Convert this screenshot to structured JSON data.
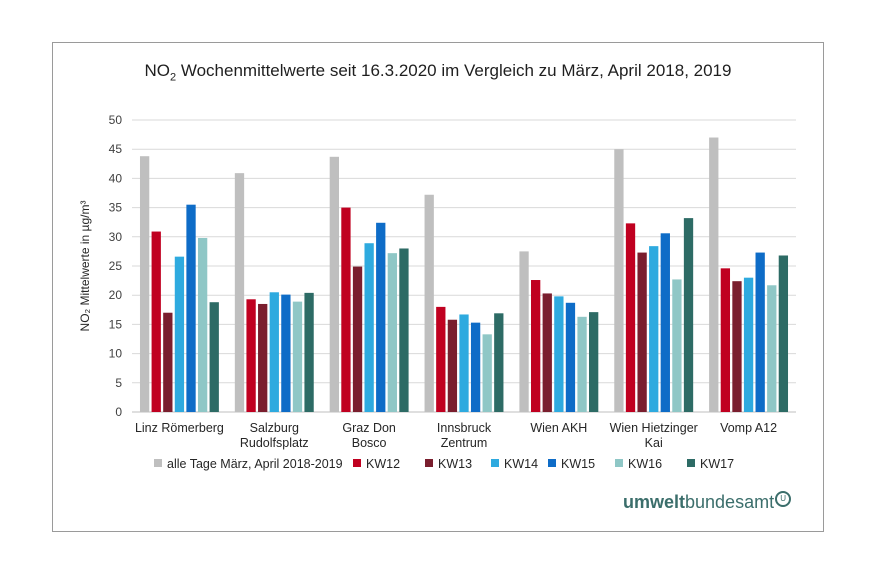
{
  "chart_data": {
    "type": "bar",
    "title_main": "NO",
    "title_sub": "2",
    "title_rest": " Wochenmittelwerte seit 16.3.2020 im Vergleich zu März, April 2018, 2019",
    "ylabel": "NO₂ Mittelwerte in µg/m³",
    "ylim": [
      0,
      50
    ],
    "yticks": [
      0,
      5,
      10,
      15,
      20,
      25,
      30,
      35,
      40,
      45,
      50
    ],
    "grid": true,
    "legend_position": "bottom",
    "categories": [
      [
        "Linz Römerberg"
      ],
      [
        "Salzburg",
        "Rudolfsplatz"
      ],
      [
        "Graz Don",
        "Bosco"
      ],
      [
        "Innsbruck",
        "Zentrum"
      ],
      [
        "Wien AKH"
      ],
      [
        "Wien Hietzinger",
        "Kai"
      ],
      [
        "Vomp A12"
      ]
    ],
    "series": [
      {
        "name": "alle Tage März, April 2018-2019",
        "color": "#bfbfbf",
        "values": [
          43.8,
          40.9,
          43.7,
          37.2,
          27.5,
          45.0,
          47.0
        ]
      },
      {
        "name": "KW12",
        "color": "#c00020",
        "values": [
          30.9,
          19.3,
          35.0,
          18.0,
          22.6,
          32.3,
          24.6
        ]
      },
      {
        "name": "KW13",
        "color": "#7a1e2e",
        "values": [
          17.0,
          18.5,
          24.9,
          15.8,
          20.3,
          27.3,
          22.4
        ]
      },
      {
        "name": "KW14",
        "color": "#2eaadf",
        "values": [
          26.6,
          20.5,
          28.9,
          16.7,
          19.8,
          28.4,
          23.0
        ]
      },
      {
        "name": "KW15",
        "color": "#0e6cc7",
        "values": [
          35.5,
          20.1,
          32.4,
          15.3,
          18.7,
          30.6,
          27.3
        ]
      },
      {
        "name": "KW16",
        "color": "#8fc7c6",
        "values": [
          29.8,
          18.9,
          27.2,
          13.3,
          16.3,
          22.7,
          21.7
        ]
      },
      {
        "name": "KW17",
        "color": "#2d6b65",
        "values": [
          18.8,
          20.4,
          28.0,
          16.9,
          17.1,
          33.2,
          26.8
        ]
      }
    ]
  },
  "logo": {
    "part1": "umwelt",
    "part2": "bundesamt",
    "mark": "U"
  }
}
